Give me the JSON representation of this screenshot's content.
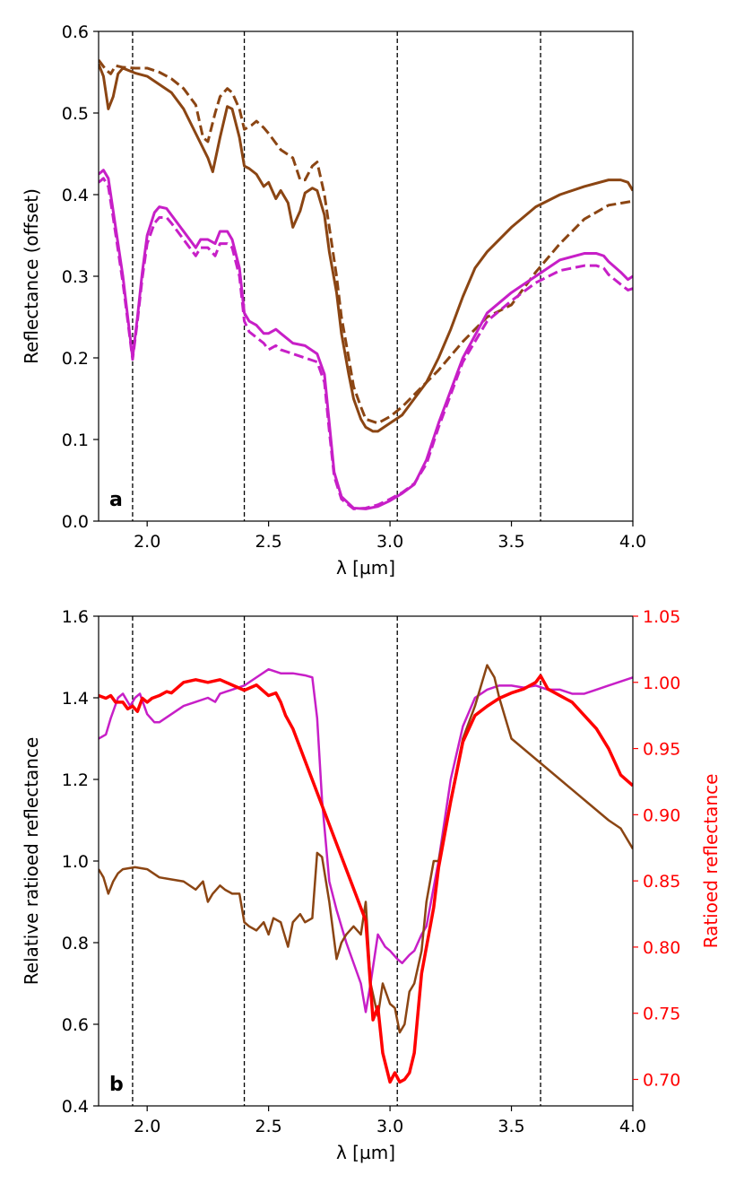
{
  "chart_data": [
    {
      "type": "line",
      "panel_label": "a",
      "xlabel": "λ [µm]",
      "ylabel": "Reflectance (offset)",
      "xlim": [
        1.8,
        4.0
      ],
      "ylim": [
        0.0,
        0.6
      ],
      "xticks": [
        2.0,
        2.5,
        3.0,
        3.5,
        4.0
      ],
      "xtick_labels": [
        "2.0",
        "2.5",
        "3.0",
        "3.5",
        "4.0"
      ],
      "yticks": [
        0.0,
        0.1,
        0.2,
        0.3,
        0.4,
        0.5,
        0.6
      ],
      "ytick_labels": [
        "0.0",
        "0.1",
        "0.2",
        "0.3",
        "0.4",
        "0.5",
        "0.6"
      ],
      "vlines": [
        1.94,
        2.4,
        3.03,
        3.62
      ],
      "series": [
        {
          "name": "brown solid",
          "color": "#8B4513",
          "dash": "solid",
          "x": [
            1.8,
            1.82,
            1.84,
            1.86,
            1.88,
            1.9,
            1.95,
            2.0,
            2.05,
            2.1,
            2.15,
            2.2,
            2.25,
            2.27,
            2.3,
            2.33,
            2.35,
            2.38,
            2.4,
            2.42,
            2.45,
            2.48,
            2.5,
            2.53,
            2.55,
            2.58,
            2.6,
            2.63,
            2.65,
            2.68,
            2.7,
            2.73,
            2.75,
            2.78,
            2.8,
            2.83,
            2.85,
            2.88,
            2.9,
            2.93,
            2.95,
            3.0,
            3.05,
            3.1,
            3.15,
            3.2,
            3.25,
            3.3,
            3.35,
            3.4,
            3.5,
            3.6,
            3.7,
            3.8,
            3.9,
            3.95,
            3.98,
            4.0
          ],
          "y": [
            0.56,
            0.545,
            0.505,
            0.52,
            0.548,
            0.555,
            0.549,
            0.545,
            0.535,
            0.525,
            0.505,
            0.475,
            0.445,
            0.428,
            0.47,
            0.508,
            0.505,
            0.47,
            0.435,
            0.432,
            0.425,
            0.41,
            0.415,
            0.395,
            0.405,
            0.39,
            0.36,
            0.38,
            0.402,
            0.408,
            0.405,
            0.375,
            0.33,
            0.28,
            0.23,
            0.18,
            0.15,
            0.125,
            0.115,
            0.11,
            0.11,
            0.12,
            0.13,
            0.15,
            0.17,
            0.2,
            0.235,
            0.275,
            0.31,
            0.33,
            0.36,
            0.385,
            0.4,
            0.41,
            0.418,
            0.418,
            0.415,
            0.405
          ]
        },
        {
          "name": "brown dashed",
          "color": "#8B4513",
          "dash": "dashed",
          "x": [
            1.8,
            1.83,
            1.85,
            1.87,
            1.9,
            1.95,
            2.0,
            2.05,
            2.1,
            2.15,
            2.2,
            2.23,
            2.25,
            2.28,
            2.3,
            2.33,
            2.35,
            2.38,
            2.4,
            2.43,
            2.45,
            2.48,
            2.5,
            2.55,
            2.6,
            2.63,
            2.65,
            2.68,
            2.7,
            2.73,
            2.75,
            2.78,
            2.8,
            2.83,
            2.85,
            2.88,
            2.9,
            2.95,
            3.0,
            3.05,
            3.1,
            3.2,
            3.3,
            3.4,
            3.5,
            3.6,
            3.7,
            3.8,
            3.9,
            4.0
          ],
          "y": [
            0.565,
            0.553,
            0.548,
            0.558,
            0.556,
            0.555,
            0.555,
            0.55,
            0.542,
            0.53,
            0.51,
            0.47,
            0.465,
            0.5,
            0.52,
            0.53,
            0.525,
            0.505,
            0.48,
            0.485,
            0.49,
            0.482,
            0.475,
            0.455,
            0.445,
            0.418,
            0.418,
            0.435,
            0.44,
            0.4,
            0.36,
            0.3,
            0.25,
            0.2,
            0.165,
            0.14,
            0.125,
            0.12,
            0.128,
            0.14,
            0.155,
            0.185,
            0.22,
            0.25,
            0.265,
            0.305,
            0.34,
            0.37,
            0.387,
            0.392
          ]
        },
        {
          "name": "magenta solid",
          "color": "#C71FC7",
          "dash": "solid",
          "x": [
            1.8,
            1.82,
            1.84,
            1.86,
            1.88,
            1.9,
            1.92,
            1.94,
            1.96,
            1.98,
            2.0,
            2.03,
            2.05,
            2.08,
            2.1,
            2.15,
            2.2,
            2.22,
            2.25,
            2.28,
            2.3,
            2.33,
            2.35,
            2.38,
            2.4,
            2.42,
            2.45,
            2.48,
            2.5,
            2.53,
            2.55,
            2.6,
            2.65,
            2.7,
            2.73,
            2.75,
            2.77,
            2.8,
            2.85,
            2.9,
            2.95,
            3.0,
            3.05,
            3.1,
            3.15,
            3.2,
            3.3,
            3.4,
            3.5,
            3.6,
            3.7,
            3.8,
            3.85,
            3.88,
            3.9,
            3.95,
            3.98,
            4.0
          ],
          "y": [
            0.425,
            0.43,
            0.42,
            0.38,
            0.34,
            0.3,
            0.25,
            0.2,
            0.25,
            0.305,
            0.35,
            0.378,
            0.385,
            0.383,
            0.375,
            0.355,
            0.335,
            0.345,
            0.345,
            0.34,
            0.355,
            0.355,
            0.345,
            0.31,
            0.255,
            0.245,
            0.24,
            0.23,
            0.23,
            0.235,
            0.23,
            0.218,
            0.215,
            0.205,
            0.18,
            0.12,
            0.06,
            0.03,
            0.016,
            0.015,
            0.018,
            0.025,
            0.034,
            0.045,
            0.075,
            0.12,
            0.2,
            0.255,
            0.28,
            0.3,
            0.32,
            0.328,
            0.328,
            0.325,
            0.318,
            0.305,
            0.296,
            0.3
          ]
        },
        {
          "name": "magenta dashed",
          "color": "#C71FC7",
          "dash": "dashed",
          "x": [
            1.8,
            1.82,
            1.84,
            1.86,
            1.88,
            1.9,
            1.92,
            1.94,
            1.96,
            1.98,
            2.0,
            2.03,
            2.05,
            2.08,
            2.1,
            2.15,
            2.2,
            2.22,
            2.25,
            2.28,
            2.3,
            2.33,
            2.35,
            2.38,
            2.4,
            2.42,
            2.45,
            2.48,
            2.5,
            2.53,
            2.55,
            2.6,
            2.65,
            2.7,
            2.73,
            2.75,
            2.77,
            2.8,
            2.85,
            2.9,
            2.95,
            3.0,
            3.05,
            3.1,
            3.15,
            3.2,
            3.3,
            3.4,
            3.5,
            3.6,
            3.7,
            3.8,
            3.85,
            3.88,
            3.9,
            3.95,
            3.98,
            4.0
          ],
          "y": [
            0.415,
            0.42,
            0.41,
            0.372,
            0.332,
            0.292,
            0.245,
            0.198,
            0.245,
            0.298,
            0.34,
            0.365,
            0.372,
            0.372,
            0.365,
            0.345,
            0.325,
            0.335,
            0.335,
            0.325,
            0.34,
            0.34,
            0.335,
            0.3,
            0.245,
            0.232,
            0.225,
            0.218,
            0.21,
            0.215,
            0.21,
            0.205,
            0.2,
            0.195,
            0.17,
            0.11,
            0.055,
            0.027,
            0.015,
            0.016,
            0.02,
            0.027,
            0.035,
            0.046,
            0.07,
            0.115,
            0.195,
            0.245,
            0.27,
            0.292,
            0.307,
            0.313,
            0.313,
            0.31,
            0.302,
            0.29,
            0.283,
            0.285
          ]
        }
      ]
    },
    {
      "type": "line",
      "panel_label": "b",
      "xlabel": "λ [µm]",
      "ylabel": "Relative ratioed reflectance",
      "ylabel_right": "Ratioed reflectance",
      "xlim": [
        1.8,
        4.0
      ],
      "ylim": [
        0.4,
        1.6
      ],
      "ylim_right": [
        0.68,
        1.05
      ],
      "xticks": [
        2.0,
        2.5,
        3.0,
        3.5,
        4.0
      ],
      "xtick_labels": [
        "2.0",
        "2.5",
        "3.0",
        "3.5",
        "4.0"
      ],
      "yticks": [
        0.4,
        0.6,
        0.8,
        1.0,
        1.2,
        1.4,
        1.6
      ],
      "ytick_labels": [
        "0.4",
        "0.6",
        "0.8",
        "1.0",
        "1.2",
        "1.4",
        "1.6"
      ],
      "yticks_right": [
        0.7,
        0.75,
        0.8,
        0.85,
        0.9,
        0.95,
        1.0,
        1.05
      ],
      "ytick_labels_right": [
        "0.70",
        "0.75",
        "0.80",
        "0.85",
        "0.90",
        "0.95",
        "1.00",
        "1.05"
      ],
      "right_axis_color": "#ff0000",
      "vlines": [
        1.94,
        2.4,
        3.03,
        3.62
      ],
      "series": [
        {
          "name": "magenta",
          "color": "#C71FC7",
          "axis": "left",
          "width": 2.5,
          "x": [
            1.8,
            1.83,
            1.85,
            1.88,
            1.9,
            1.93,
            1.95,
            1.97,
            2.0,
            2.03,
            2.05,
            2.1,
            2.15,
            2.2,
            2.25,
            2.28,
            2.3,
            2.35,
            2.4,
            2.45,
            2.5,
            2.55,
            2.6,
            2.65,
            2.68,
            2.7,
            2.72,
            2.75,
            2.78,
            2.8,
            2.82,
            2.85,
            2.88,
            2.9,
            2.92,
            2.95,
            2.98,
            3.0,
            3.03,
            3.05,
            3.08,
            3.1,
            3.13,
            3.15,
            3.2,
            3.25,
            3.3,
            3.35,
            3.4,
            3.45,
            3.5,
            3.55,
            3.6,
            3.65,
            3.7,
            3.75,
            3.8,
            3.85,
            3.9,
            3.95,
            4.0
          ],
          "y": [
            1.3,
            1.31,
            1.35,
            1.4,
            1.41,
            1.38,
            1.4,
            1.41,
            1.36,
            1.34,
            1.34,
            1.36,
            1.38,
            1.39,
            1.4,
            1.39,
            1.41,
            1.42,
            1.43,
            1.45,
            1.47,
            1.46,
            1.46,
            1.455,
            1.45,
            1.35,
            1.15,
            0.95,
            0.88,
            0.84,
            0.8,
            0.75,
            0.7,
            0.63,
            0.7,
            0.82,
            0.79,
            0.78,
            0.76,
            0.75,
            0.77,
            0.78,
            0.82,
            0.84,
            1.0,
            1.2,
            1.33,
            1.4,
            1.42,
            1.43,
            1.43,
            1.425,
            1.43,
            1.42,
            1.42,
            1.41,
            1.41,
            1.42,
            1.43,
            1.44,
            1.45
          ]
        },
        {
          "name": "brown",
          "color": "#8B4513",
          "axis": "left",
          "width": 2.5,
          "x": [
            1.8,
            1.82,
            1.84,
            1.86,
            1.88,
            1.9,
            1.95,
            2.0,
            2.05,
            2.1,
            2.15,
            2.2,
            2.23,
            2.25,
            2.27,
            2.3,
            2.32,
            2.35,
            2.38,
            2.4,
            2.42,
            2.45,
            2.48,
            2.5,
            2.52,
            2.55,
            2.58,
            2.6,
            2.63,
            2.65,
            2.68,
            2.7,
            2.72,
            2.75,
            2.78,
            2.8,
            2.82,
            2.85,
            2.88,
            2.9,
            2.92,
            2.95,
            2.97,
            3.0,
            3.02,
            3.04,
            3.06,
            3.08,
            3.1,
            3.13,
            3.15,
            3.18,
            3.2,
            3.25,
            3.3,
            3.35,
            3.4,
            3.43,
            3.45,
            3.5,
            3.6,
            3.7,
            3.8,
            3.9,
            3.95,
            4.0
          ],
          "y": [
            0.98,
            0.96,
            0.92,
            0.95,
            0.97,
            0.98,
            0.985,
            0.98,
            0.96,
            0.955,
            0.95,
            0.93,
            0.95,
            0.9,
            0.92,
            0.94,
            0.93,
            0.92,
            0.92,
            0.85,
            0.84,
            0.83,
            0.85,
            0.82,
            0.86,
            0.85,
            0.79,
            0.85,
            0.87,
            0.85,
            0.86,
            1.02,
            1.01,
            0.9,
            0.76,
            0.8,
            0.82,
            0.84,
            0.82,
            0.9,
            0.7,
            0.62,
            0.7,
            0.65,
            0.64,
            0.58,
            0.6,
            0.68,
            0.7,
            0.78,
            0.9,
            1.0,
            1.0,
            1.15,
            1.3,
            1.38,
            1.48,
            1.45,
            1.4,
            1.3,
            1.25,
            1.2,
            1.15,
            1.1,
            1.08,
            1.03
          ]
        },
        {
          "name": "red",
          "color": "#ff0000",
          "axis": "right",
          "width": 3.5,
          "x": [
            1.8,
            1.83,
            1.85,
            1.87,
            1.9,
            1.92,
            1.94,
            1.96,
            1.98,
            2.0,
            2.02,
            2.05,
            2.08,
            2.1,
            2.15,
            2.2,
            2.25,
            2.3,
            2.35,
            2.4,
            2.45,
            2.5,
            2.53,
            2.55,
            2.57,
            2.6,
            2.9,
            2.93,
            2.95,
            2.97,
            3.0,
            3.02,
            3.04,
            3.06,
            3.08,
            3.1,
            3.13,
            3.15,
            3.18,
            3.2,
            3.25,
            3.3,
            3.35,
            3.4,
            3.45,
            3.5,
            3.55,
            3.6,
            3.62,
            3.65,
            3.7,
            3.75,
            3.8,
            3.85,
            3.9,
            3.95,
            4.0
          ],
          "y": [
            0.99,
            0.988,
            0.99,
            0.985,
            0.985,
            0.98,
            0.982,
            0.978,
            0.988,
            0.985,
            0.988,
            0.99,
            0.993,
            0.992,
            1.0,
            1.002,
            1.0,
            1.002,
            0.998,
            0.994,
            0.998,
            0.99,
            0.992,
            0.985,
            0.975,
            0.965,
            0.82,
            0.745,
            0.755,
            0.72,
            0.698,
            0.705,
            0.698,
            0.7,
            0.705,
            0.72,
            0.78,
            0.8,
            0.83,
            0.86,
            0.91,
            0.955,
            0.975,
            0.982,
            0.988,
            0.992,
            0.995,
            1.0,
            1.005,
            0.995,
            0.99,
            0.985,
            0.975,
            0.965,
            0.95,
            0.93,
            0.922
          ]
        }
      ]
    }
  ]
}
